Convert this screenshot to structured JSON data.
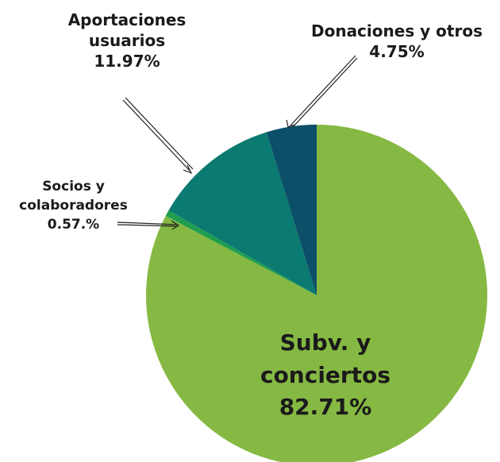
{
  "chart_data": {
    "type": "pie",
    "categories": [
      "Subv. y conciertos",
      "Socios y colaboradores",
      "Aportaciones usuarios",
      "Donaciones y otros"
    ],
    "values": [
      82.71,
      0.57,
      11.97,
      4.75
    ],
    "value_labels": [
      "82.71%",
      "0.57.%",
      "11.97%",
      "4.75%"
    ],
    "colors": [
      "#86b943",
      "#1f9e4e",
      "#0b7a70",
      "#0b4f68"
    ]
  }
}
